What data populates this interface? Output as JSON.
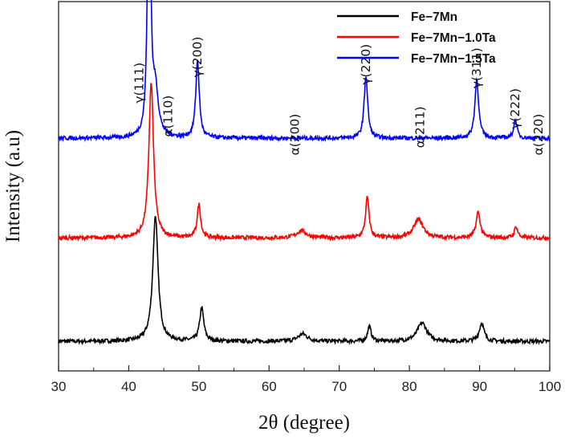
{
  "chart_data": {
    "type": "line",
    "xlabel": "2θ (degree)",
    "ylabel": "Intensity (a.u)",
    "xlim": [
      30,
      100
    ],
    "xticks": [
      30,
      40,
      50,
      60,
      70,
      80,
      90,
      100
    ],
    "y_ticks_shown": false,
    "grid": false,
    "legend_position": "top-right",
    "series": [
      {
        "name": "Fe−7Mn",
        "color": "#000000",
        "baseline": 0.08,
        "peaks": [
          [
            43.8,
            0.34,
            0.45
          ],
          [
            50.4,
            0.09,
            0.35
          ],
          [
            64.8,
            0.02,
            0.8
          ],
          [
            74.3,
            0.04,
            0.3
          ],
          [
            81.8,
            0.05,
            0.8
          ],
          [
            90.3,
            0.05,
            0.4
          ]
        ]
      },
      {
        "name": "Fe−7Mn−1.0Ta",
        "color": "#ff0000",
        "baseline": 0.36,
        "peaks": [
          [
            43.2,
            0.42,
            0.4
          ],
          [
            50.0,
            0.09,
            0.3
          ],
          [
            64.6,
            0.02,
            0.8
          ],
          [
            74.0,
            0.11,
            0.3
          ],
          [
            81.3,
            0.05,
            0.8
          ],
          [
            89.8,
            0.07,
            0.35
          ],
          [
            95.2,
            0.03,
            0.3
          ]
        ]
      },
      {
        "name": "Fe−7Mn−1.5Ta",
        "color": "#0000ff",
        "baseline": 0.63,
        "peaks": [
          [
            42.9,
            0.99,
            0.22
          ],
          [
            43.8,
            0.12,
            0.5
          ],
          [
            49.8,
            0.21,
            0.3
          ],
          [
            73.8,
            0.17,
            0.3
          ],
          [
            89.6,
            0.16,
            0.32
          ],
          [
            95.1,
            0.05,
            0.28
          ]
        ]
      }
    ],
    "annotations": [
      {
        "text": "γ(111)",
        "x": 41.5,
        "y": 0.78
      },
      {
        "text": "α(110)",
        "x": 45.6,
        "y": 0.69
      },
      {
        "text": "γ(200)",
        "x": 49.8,
        "y": 0.85
      },
      {
        "text": "α(200)",
        "x": 63.7,
        "y": 0.64
      },
      {
        "text": "γ(220)",
        "x": 73.8,
        "y": 0.83
      },
      {
        "text": "α(211)",
        "x": 81.5,
        "y": 0.66
      },
      {
        "text": "γ(311)",
        "x": 89.6,
        "y": 0.82
      },
      {
        "text": "γ(222)",
        "x": 95.1,
        "y": 0.71
      },
      {
        "text": "α(220)",
        "x": 98.4,
        "y": 0.64
      }
    ]
  }
}
